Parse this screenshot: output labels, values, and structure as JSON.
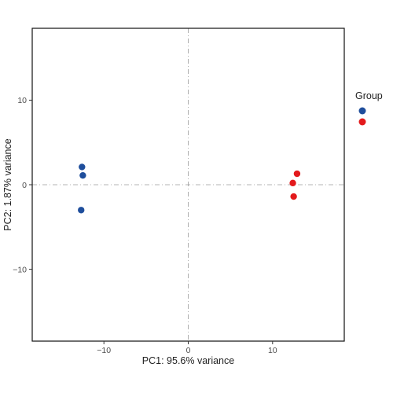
{
  "chart_data": {
    "type": "scatter",
    "xlabel": "PC1: 95.6% variance",
    "ylabel": "PC2: 1.87% variance",
    "xlim": [
      -18.5,
      18.5
    ],
    "ylim": [
      -18.5,
      18.5
    ],
    "x_ticks": [
      {
        "value": -10,
        "label": "−10"
      },
      {
        "value": 0,
        "label": "0"
      },
      {
        "value": 10,
        "label": "10"
      }
    ],
    "y_ticks": [
      {
        "value": 10,
        "label": "10"
      },
      {
        "value": 0,
        "label": "0"
      },
      {
        "value": -10,
        "label": "−10"
      }
    ],
    "grid": false,
    "reference_lines": {
      "x": 0,
      "y": 0,
      "style": "dashed"
    },
    "legend": {
      "title": "Group",
      "placement": "right"
    },
    "series": [
      {
        "color": "#1f4e9c",
        "points": [
          {
            "x": -12.6,
            "y": 2.1
          },
          {
            "x": -12.5,
            "y": 1.1
          },
          {
            "x": -12.7,
            "y": -3.0
          }
        ]
      },
      {
        "color": "#e31a1c",
        "points": [
          {
            "x": 12.9,
            "y": 1.3
          },
          {
            "x": 12.4,
            "y": 0.2
          },
          {
            "x": 12.5,
            "y": -1.4
          }
        ]
      }
    ]
  }
}
